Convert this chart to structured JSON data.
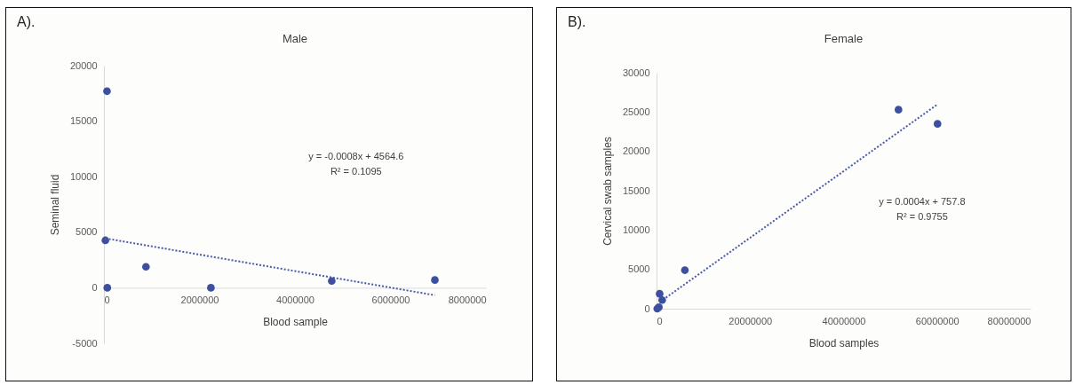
{
  "chart_data": [
    {
      "type": "scatter",
      "title": "Male",
      "xlabel": "Blood sample",
      "ylabel": "Seminal fluid",
      "grid": false,
      "annotations": [
        "A).",
        "y = -0.0008x + 4564.6",
        "R² = 0.1095"
      ],
      "xlim": [
        0,
        8000000
      ],
      "xticks": [
        0,
        2000000,
        4000000,
        6000000,
        8000000
      ],
      "ylim": [
        -5000,
        20000
      ],
      "yticks": [
        -5000,
        0,
        5000,
        10000,
        15000,
        20000
      ],
      "series": [
        {
          "type": "scatter",
          "marker": "circle",
          "color": "#3d4f9f",
          "x": [
            64000,
            30000,
            70000,
            880000,
            2240000,
            4770000,
            6930000
          ],
          "values": [
            17700,
            4270,
            0,
            1890,
            0,
            610,
            700
          ]
        },
        {
          "type": "line",
          "color": "#4a5aa8",
          "line_style": "dotted",
          "x": [
            30000,
            6930000
          ],
          "values": [
            4450,
            -670
          ]
        }
      ]
    },
    {
      "type": "scatter",
      "title": "Female",
      "xlabel": "Blood samples",
      "ylabel": "Cervical swab samples",
      "grid": false,
      "annotations": [
        "B).",
        "y = 0.0004x + 757.8",
        "R² = 0.9755"
      ],
      "xlim": [
        0,
        80000000
      ],
      "xticks": [
        0,
        20000000,
        40000000,
        60000000,
        80000000
      ],
      "ylim": [
        0,
        30000
      ],
      "yticks": [
        0,
        5000,
        10000,
        15000,
        20000,
        25000,
        30000
      ],
      "series": [
        {
          "type": "scatter",
          "marker": "circle",
          "color": "#3d4f9f",
          "x": [
            51750000,
            60100000,
            6060000,
            660000,
            1200000,
            150000,
            500000
          ],
          "values": [
            25300,
            23500,
            4900,
            1900,
            1100,
            0,
            200
          ]
        },
        {
          "type": "line",
          "color": "#4a5aa8",
          "line_style": "dotted",
          "x": [
            2000000,
            59900000
          ],
          "values": [
            1400,
            25900
          ]
        }
      ]
    }
  ]
}
